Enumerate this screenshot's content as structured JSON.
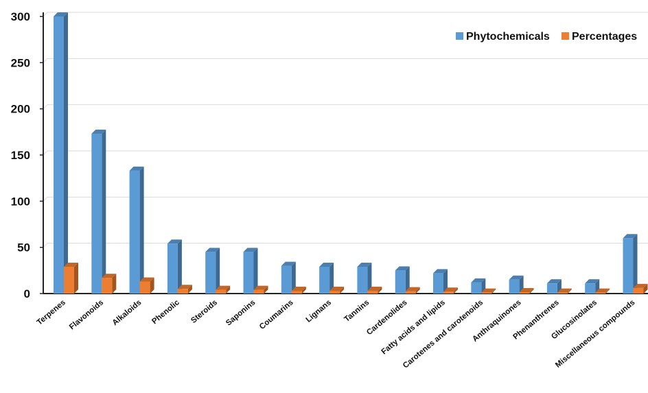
{
  "chart_data": {
    "type": "bar",
    "title": "",
    "xlabel": "",
    "ylabel": "",
    "ylim": [
      0,
      300
    ],
    "yticks": [
      0,
      50,
      100,
      150,
      200,
      250,
      300
    ],
    "grid": true,
    "legend_position": "top-right",
    "categories": [
      "Terpenes",
      "Flavonoids",
      "Alkaloids",
      "Phenolic",
      "Steroids",
      "Saponins",
      "Coumarins",
      "Lignans",
      "Tannins",
      "Cardenolides",
      "Fatty acids and lipids",
      "Carotenes and carotenoids",
      "Anthraquinones",
      "Phenanthrenes",
      "Glucosinolates",
      "Miscellaneous compounds"
    ],
    "series": [
      {
        "name": "Phytochemicals",
        "color": "#5B9BD5",
        "values": [
          300,
          173,
          133,
          54,
          45,
          45,
          30,
          29,
          29,
          25,
          22,
          12,
          15,
          11,
          11,
          60
        ]
      },
      {
        "name": "Percentages",
        "color": "#ED7D31",
        "values": [
          29,
          17,
          13,
          5,
          4,
          4,
          3,
          3,
          3,
          2.5,
          2,
          1,
          1.5,
          1,
          1,
          6
        ]
      }
    ]
  }
}
